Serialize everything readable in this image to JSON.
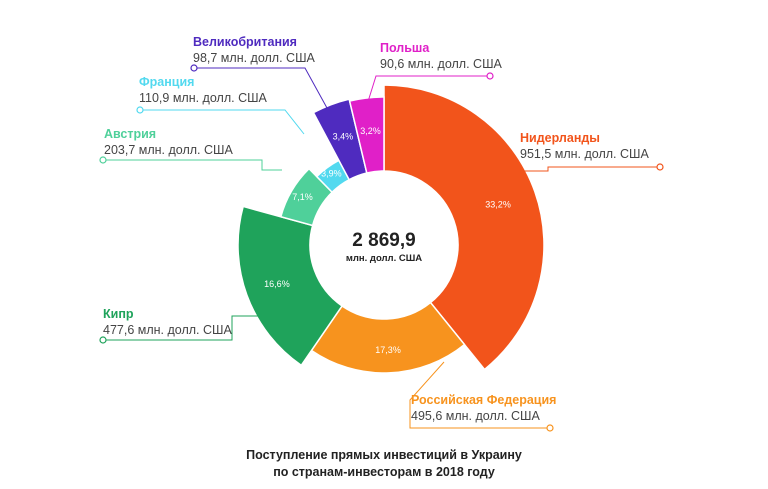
{
  "chart_data": {
    "type": "pie",
    "subtype": "donut",
    "caption_line1": "Поступление прямых инвестиций в Украину",
    "caption_line2": "по странам-инвесторам в 2018 году",
    "center_total": "2 869,9",
    "center_unit": "млн. долл. США",
    "slices": [
      {
        "name": "Нидерланды",
        "value": 951.5,
        "value_text": "951,5 млн. долл. США",
        "pct_text": "33,2%",
        "color": "#f2541b",
        "label_color": "#f2541b"
      },
      {
        "name": "Российская Федерация",
        "value": 495.6,
        "value_text": "495,6 млн. долл. США",
        "pct_text": "17,3%",
        "color": "#f7931e",
        "label_color": "#f7931e"
      },
      {
        "name": "Кипр",
        "value": 477.6,
        "value_text": "477,6 млн. долл. США",
        "pct_text": "16,6%",
        "color": "#1fa35b",
        "label_color": "#1fa35b"
      },
      {
        "name": "Австрия",
        "value": 203.7,
        "value_text": "203,7 млн. долл. США",
        "pct_text": "7,1%",
        "color": "#4fd09a",
        "label_color": "#4fd09a"
      },
      {
        "name": "Франция",
        "value": 110.9,
        "value_text": "110,9 млн. долл. США",
        "pct_text": "3,9%",
        "color": "#52d9ef",
        "label_color": "#52d9ef"
      },
      {
        "name": "Великобритания",
        "value": 98.7,
        "value_text": "98,7 млн. долл. США",
        "pct_text": "3,4%",
        "color": "#4f2bbf",
        "label_color": "#4f2bbf"
      },
      {
        "name": "Польша",
        "value": 90.6,
        "value_text": "90,6 млн. долл. США",
        "pct_text": "3,2%",
        "color": "#e020c8",
        "label_color": "#e020c8"
      }
    ]
  }
}
